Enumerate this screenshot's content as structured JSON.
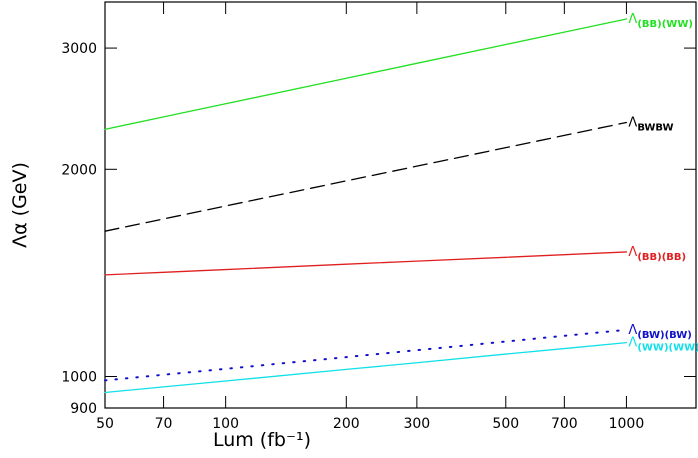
{
  "chart_data": {
    "type": "line",
    "x_label": "Lum (fb⁻¹)",
    "y_label": "Λα (GeV)",
    "x_scale": "log",
    "y_scale": "log",
    "xlim": [
      50,
      1500
    ],
    "ylim": [
      900,
      3500
    ],
    "xticks": [
      50,
      70,
      100,
      200,
      300,
      500,
      700,
      1000
    ],
    "yticks": [
      900,
      1000,
      2000,
      3000
    ],
    "x": [
      50,
      70,
      100,
      200,
      300,
      500,
      700,
      1000
    ],
    "series": [
      {
        "name": "Λ(BB)(WW)",
        "color": "#22e022",
        "dash": "solid",
        "values": [
          2286,
          2383,
          2490,
          2712,
          2851,
          3036,
          3165,
          3307
        ]
      },
      {
        "name": "ΛBWBW",
        "color": "#000000",
        "dash": "dashed",
        "values": [
          1626,
          1694,
          1769,
          1924,
          2021,
          2150,
          2240,
          2339
        ]
      },
      {
        "name": "Λ(BB)(BB)",
        "color": "#e02020",
        "dash": "solid",
        "values": [
          1405,
          1417,
          1430,
          1456,
          1471,
          1490,
          1503,
          1517
        ]
      },
      {
        "name": "Λ(BW)(BW)",
        "color": "#1010cc",
        "dash": "dotted",
        "values": [
          987,
          1006,
          1026,
          1067,
          1092,
          1124,
          1146,
          1169
        ]
      },
      {
        "name": "Λ(WW)(WW)",
        "color": "#10e0e8",
        "dash": "solid",
        "values": [
          948,
          966,
          985,
          1024,
          1047,
          1078,
          1098,
          1120
        ]
      }
    ]
  }
}
